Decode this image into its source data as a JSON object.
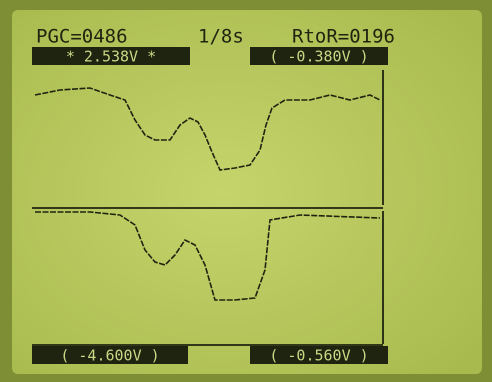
{
  "header": {
    "pgc": "PGC=0486",
    "rate": "1/8s",
    "rtor": "RtoR=0196"
  },
  "labels": {
    "top_left": "* 2.538V *",
    "top_right": "( -0.380V )",
    "bottom_left": "( -4.600V )",
    "bottom_right": "( -0.560V )"
  }
}
